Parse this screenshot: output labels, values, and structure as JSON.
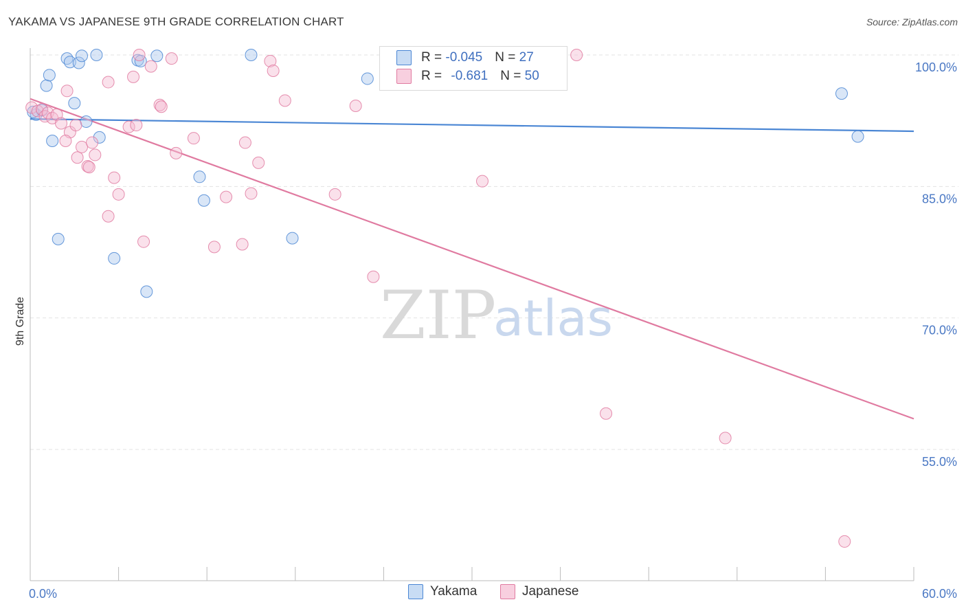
{
  "chart_data": {
    "type": "scatter",
    "title": "YAKAMA VS JAPANESE 9TH GRADE CORRELATION CHART",
    "source": "Source: ZipAtlas.com",
    "ylabel": "9th Grade",
    "xlabel": "",
    "xlim": [
      0,
      60
    ],
    "ylim": [
      41,
      103
    ],
    "x_tick_labels": [
      "0.0%",
      "60.0%"
    ],
    "y_ticks": [
      {
        "value": 100,
        "label": "100.0%"
      },
      {
        "value": 85,
        "label": "85.0%"
      },
      {
        "value": 70,
        "label": "70.0%"
      },
      {
        "value": 55,
        "label": "55.0%"
      }
    ],
    "grid": true,
    "watermark": {
      "zip": "ZIP",
      "atlas": "atlas"
    },
    "legend": {
      "placement": "top-center",
      "rows": [
        {
          "series": "Yakama",
          "r_label": "R = ",
          "r": "-0.045",
          "n_label": "N = ",
          "n": "27"
        },
        {
          "series": "Japanese",
          "r_label": "R = ",
          "r": "-0.681",
          "n_label": "N = ",
          "n": "50"
        }
      ]
    },
    "series": [
      {
        "name": "Yakama",
        "color": "#4a86d4",
        "fill": "#aac8ee",
        "trend": {
          "x": [
            0,
            60
          ],
          "y": [
            92.7,
            91.3
          ]
        },
        "points": [
          [
            0.4,
            93.2
          ],
          [
            0.8,
            93.7
          ],
          [
            1.1,
            96.5
          ],
          [
            1.3,
            97.7
          ],
          [
            1.5,
            90.2
          ],
          [
            2.5,
            99.6
          ],
          [
            2.7,
            99.2
          ],
          [
            3.0,
            94.5
          ],
          [
            3.3,
            99.1
          ],
          [
            3.5,
            99.9
          ],
          [
            3.8,
            92.4
          ],
          [
            4.7,
            90.6
          ],
          [
            4.5,
            100.0
          ],
          [
            7.3,
            99.4
          ],
          [
            7.5,
            99.3
          ],
          [
            8.6,
            99.9
          ],
          [
            11.5,
            86.1
          ],
          [
            11.8,
            83.4
          ],
          [
            15.0,
            100.0
          ],
          [
            22.9,
            97.3
          ],
          [
            1.9,
            79.0
          ],
          [
            5.7,
            76.8
          ],
          [
            7.9,
            73.0
          ],
          [
            17.8,
            79.1
          ],
          [
            55.1,
            95.6
          ],
          [
            56.2,
            90.7
          ],
          [
            0.2,
            93.5
          ]
        ]
      },
      {
        "name": "Japanese",
        "color": "#e07aa0",
        "fill": "#f5bcd2",
        "trend": {
          "x": [
            0,
            60
          ],
          "y": [
            95.0,
            58.5
          ]
        },
        "points": [
          [
            0.1,
            94.0
          ],
          [
            0.5,
            93.6
          ],
          [
            0.8,
            93.8
          ],
          [
            1.0,
            93.0
          ],
          [
            1.2,
            93.4
          ],
          [
            1.5,
            92.8
          ],
          [
            1.8,
            93.2
          ],
          [
            2.1,
            92.2
          ],
          [
            2.5,
            95.9
          ],
          [
            2.7,
            91.2
          ],
          [
            3.2,
            88.3
          ],
          [
            3.5,
            89.5
          ],
          [
            3.9,
            87.3
          ],
          [
            4.2,
            90.0
          ],
          [
            4.4,
            88.6
          ],
          [
            4.0,
            87.2
          ],
          [
            3.1,
            92.0
          ],
          [
            2.4,
            90.2
          ],
          [
            5.3,
            96.9
          ],
          [
            5.7,
            86.0
          ],
          [
            6.0,
            84.1
          ],
          [
            5.3,
            81.6
          ],
          [
            6.7,
            91.8
          ],
          [
            7.0,
            97.5
          ],
          [
            7.2,
            92.0
          ],
          [
            7.4,
            100.0
          ],
          [
            8.2,
            98.7
          ],
          [
            8.8,
            94.3
          ],
          [
            8.9,
            94.1
          ],
          [
            9.6,
            99.6
          ],
          [
            9.9,
            88.8
          ],
          [
            11.1,
            90.5
          ],
          [
            7.7,
            78.7
          ],
          [
            12.5,
            78.1
          ],
          [
            13.3,
            83.8
          ],
          [
            14.6,
            90.0
          ],
          [
            14.4,
            78.4
          ],
          [
            15.0,
            84.2
          ],
          [
            15.5,
            87.7
          ],
          [
            16.3,
            99.3
          ],
          [
            16.5,
            98.2
          ],
          [
            17.3,
            94.8
          ],
          [
            20.7,
            84.1
          ],
          [
            22.1,
            94.2
          ],
          [
            23.3,
            74.7
          ],
          [
            30.7,
            85.6
          ],
          [
            37.1,
            100.0
          ],
          [
            39.1,
            59.1
          ],
          [
            47.2,
            56.3
          ],
          [
            55.3,
            44.5
          ]
        ]
      }
    ]
  }
}
